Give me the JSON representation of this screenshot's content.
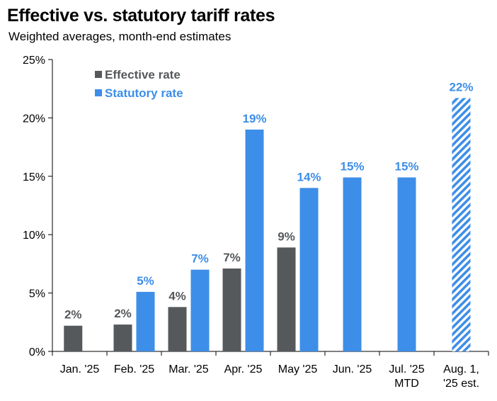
{
  "title": "Effective vs. statutory tariff rates",
  "subtitle": "Weighted averages, month-end estimates",
  "chart_data": {
    "type": "bar",
    "title": "Effective vs. statutory tariff rates",
    "subtitle": "Weighted averages, month-end estimates",
    "xlabel": "",
    "ylabel": "",
    "ylim": [
      0,
      25
    ],
    "yticks": [
      "0%",
      "5%",
      "10%",
      "15%",
      "20%",
      "25%"
    ],
    "ytick_values": [
      0,
      5,
      10,
      15,
      20,
      25
    ],
    "grid": false,
    "legend_position": "top-left",
    "categories": [
      [
        "Jan. '25"
      ],
      [
        "Feb. '25"
      ],
      [
        "Mar. '25"
      ],
      [
        "Apr. '25"
      ],
      [
        "May '25"
      ],
      [
        "Jun. '25"
      ],
      [
        "Jul. '25",
        "MTD"
      ],
      [
        "Aug. 1,",
        "'25 est."
      ]
    ],
    "series": [
      {
        "name": "Effective rate",
        "color": "#55595c",
        "values": [
          2.2,
          2.3,
          3.8,
          7.1,
          8.9,
          null,
          null,
          null
        ],
        "labels": [
          "2%",
          "2%",
          "4%",
          "7%",
          "9%",
          null,
          null,
          null
        ]
      },
      {
        "name": "Statutory rate",
        "color": "#3d8ee8",
        "values": [
          null,
          5.1,
          7.0,
          19.0,
          14.0,
          14.9,
          14.9,
          21.7
        ],
        "labels": [
          null,
          "5%",
          "7%",
          "19%",
          "14%",
          "15%",
          "15%",
          "22%"
        ],
        "hatched_index": 7
      }
    ]
  }
}
